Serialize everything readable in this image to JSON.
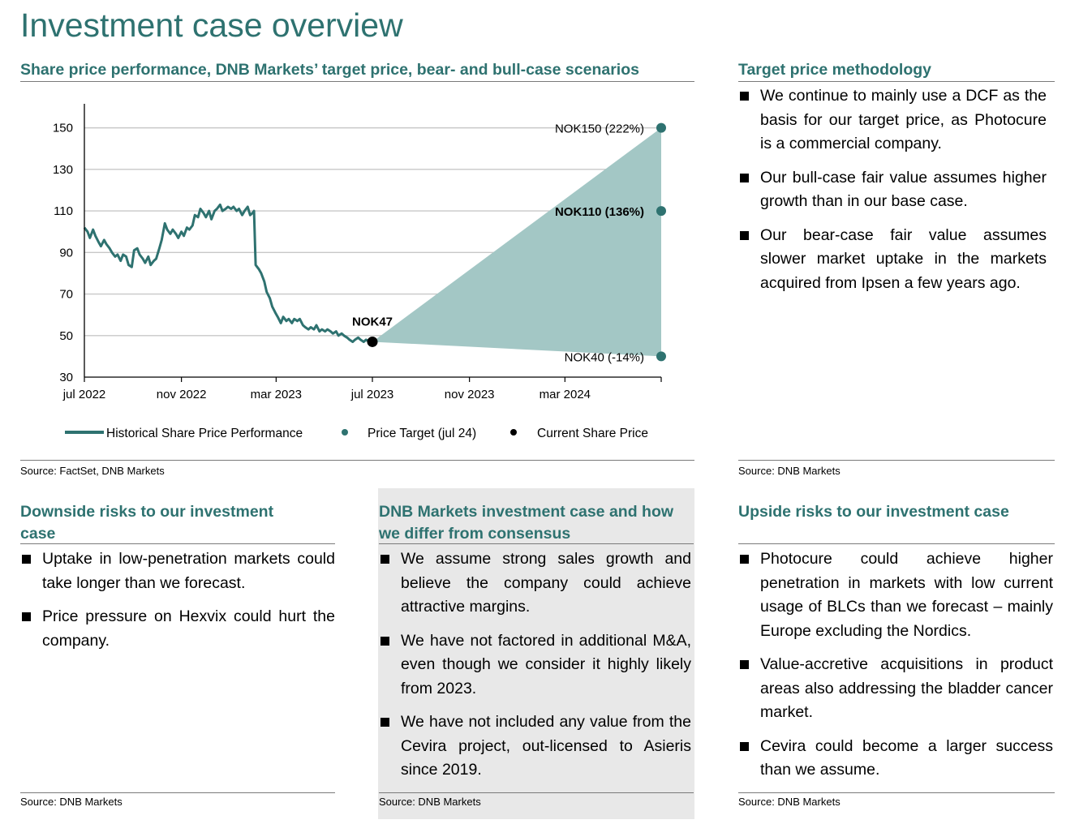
{
  "page_title": "Investment case overview",
  "chart_section": {
    "heading": "Share price performance, DNB Markets’ target price, bear- and bull-case scenarios",
    "source": "Source: FactSet, DNB Markets"
  },
  "methodology": {
    "heading": "Target price methodology",
    "bullets": [
      "We continue to mainly use a DCF as the basis for our target price, as Photocure is a commercial company.",
      "Our bull-case fair value assumes higher growth than in our base case.",
      "Our bear-case fair value assumes slower market uptake in the markets acquired from Ipsen a few years ago."
    ],
    "source": "Source: DNB Markets"
  },
  "downside": {
    "heading": "Downside risks to our investment case",
    "bullets": [
      "Uptake in low-penetration markets could take longer than we forecast.",
      "Price pressure on Hexvix could hurt the company."
    ],
    "source": "Source: DNB Markets"
  },
  "investment_case": {
    "heading": "DNB Markets investment case and how we differ from consensus",
    "bullets": [
      "We assume strong sales growth and believe the company could achieve attractive margins.",
      "We have not factored in additional M&A, even though we consider it highly likely from 2023.",
      "We have not included any value from the Cevira project, out-licensed to Asieris since 2019."
    ],
    "source": "Source: DNB Markets"
  },
  "upside": {
    "heading": "Upside risks to our investment case",
    "bullets": [
      "Photocure could achieve higher penetration in markets with low current usage of BLCs than we forecast – mainly Europe excluding the Nordics.",
      "Value-accretive acquisitions in product areas also addressing the bladder cancer market.",
      "Cevira could become a larger success than we assume."
    ],
    "source": "Source: DNB Markets"
  },
  "chart_data": {
    "type": "line",
    "title": "",
    "xlabel": "",
    "ylabel": "",
    "ylim": [
      30,
      160
    ],
    "yticks": [
      30,
      50,
      70,
      90,
      110,
      130,
      150
    ],
    "xlim": [
      "2022-07-01",
      "2024-07-01"
    ],
    "xticks": [
      {
        "date": "2022-07-01",
        "label": "jul 2022"
      },
      {
        "date": "2022-11-01",
        "label": "nov 2022"
      },
      {
        "date": "2023-03-01",
        "label": "mar 2023"
      },
      {
        "date": "2023-07-01",
        "label": "jul 2023"
      },
      {
        "date": "2023-11-01",
        "label": "nov 2023"
      },
      {
        "date": "2024-03-01",
        "label": "mar 2024"
      }
    ],
    "grid": true,
    "legend_placement": "bottom",
    "colors": {
      "line": "#2e7270",
      "fill": "#a3c7c5",
      "grid": "#c8c8c8",
      "current": "#000000"
    },
    "series": [
      {
        "name": "Historical Share Price Performance",
        "points": [
          [
            "2022-07-01",
            102
          ],
          [
            "2022-07-05",
            100
          ],
          [
            "2022-07-08",
            97
          ],
          [
            "2022-07-12",
            101
          ],
          [
            "2022-07-15",
            98
          ],
          [
            "2022-07-19",
            95
          ],
          [
            "2022-07-22",
            93
          ],
          [
            "2022-07-26",
            96
          ],
          [
            "2022-07-29",
            94
          ],
          [
            "2022-08-02",
            92
          ],
          [
            "2022-08-05",
            90
          ],
          [
            "2022-08-09",
            88
          ],
          [
            "2022-08-12",
            89
          ],
          [
            "2022-08-16",
            86
          ],
          [
            "2022-08-19",
            89
          ],
          [
            "2022-08-23",
            88
          ],
          [
            "2022-08-26",
            84
          ],
          [
            "2022-08-30",
            83
          ],
          [
            "2022-09-02",
            91
          ],
          [
            "2022-09-06",
            92
          ],
          [
            "2022-09-09",
            89
          ],
          [
            "2022-09-13",
            87
          ],
          [
            "2022-09-16",
            85
          ],
          [
            "2022-09-20",
            88
          ],
          [
            "2022-09-23",
            84
          ],
          [
            "2022-09-27",
            86
          ],
          [
            "2022-09-30",
            87
          ],
          [
            "2022-10-04",
            92
          ],
          [
            "2022-10-07",
            96
          ],
          [
            "2022-10-11",
            104
          ],
          [
            "2022-10-14",
            101
          ],
          [
            "2022-10-18",
            99
          ],
          [
            "2022-10-21",
            101
          ],
          [
            "2022-10-25",
            99
          ],
          [
            "2022-10-28",
            97
          ],
          [
            "2022-11-01",
            100
          ],
          [
            "2022-11-04",
            98
          ],
          [
            "2022-11-08",
            102
          ],
          [
            "2022-11-11",
            101
          ],
          [
            "2022-11-15",
            103
          ],
          [
            "2022-11-18",
            108
          ],
          [
            "2022-11-22",
            107
          ],
          [
            "2022-11-25",
            111
          ],
          [
            "2022-11-29",
            109
          ],
          [
            "2022-12-02",
            107
          ],
          [
            "2022-12-06",
            110
          ],
          [
            "2022-12-09",
            106
          ],
          [
            "2022-12-13",
            110
          ],
          [
            "2022-12-16",
            111
          ],
          [
            "2022-12-20",
            113
          ],
          [
            "2022-12-23",
            110
          ],
          [
            "2022-12-27",
            111
          ],
          [
            "2022-12-30",
            112
          ],
          [
            "2023-01-03",
            111
          ],
          [
            "2023-01-06",
            112
          ],
          [
            "2023-01-10",
            110
          ],
          [
            "2023-01-13",
            111
          ],
          [
            "2023-01-17",
            108
          ],
          [
            "2023-01-20",
            110
          ],
          [
            "2023-01-24",
            112
          ],
          [
            "2023-01-27",
            108
          ],
          [
            "2023-01-30",
            109
          ],
          [
            "2023-02-01",
            110
          ],
          [
            "2023-02-03",
            84
          ],
          [
            "2023-02-07",
            82
          ],
          [
            "2023-02-10",
            80
          ],
          [
            "2023-02-14",
            76
          ],
          [
            "2023-02-17",
            71
          ],
          [
            "2023-02-21",
            68
          ],
          [
            "2023-02-24",
            64
          ],
          [
            "2023-02-28",
            61
          ],
          [
            "2023-03-03",
            59
          ],
          [
            "2023-03-07",
            56
          ],
          [
            "2023-03-10",
            59
          ],
          [
            "2023-03-14",
            57
          ],
          [
            "2023-03-17",
            58
          ],
          [
            "2023-03-21",
            56
          ],
          [
            "2023-03-24",
            58
          ],
          [
            "2023-03-28",
            57
          ],
          [
            "2023-03-31",
            58
          ],
          [
            "2023-04-04",
            55
          ],
          [
            "2023-04-07",
            54
          ],
          [
            "2023-04-11",
            53
          ],
          [
            "2023-04-14",
            54
          ],
          [
            "2023-04-18",
            53
          ],
          [
            "2023-04-21",
            55
          ],
          [
            "2023-04-25",
            52
          ],
          [
            "2023-04-28",
            53
          ],
          [
            "2023-05-02",
            52
          ],
          [
            "2023-05-05",
            53
          ],
          [
            "2023-05-09",
            52
          ],
          [
            "2023-05-12",
            51
          ],
          [
            "2023-05-16",
            52
          ],
          [
            "2023-05-19",
            50
          ],
          [
            "2023-05-23",
            51
          ],
          [
            "2023-05-26",
            50
          ],
          [
            "2023-05-30",
            49
          ],
          [
            "2023-06-02",
            48
          ],
          [
            "2023-06-06",
            47
          ],
          [
            "2023-06-09",
            48
          ],
          [
            "2023-06-13",
            49
          ],
          [
            "2023-06-16",
            48
          ],
          [
            "2023-06-20",
            47
          ],
          [
            "2023-06-23",
            48
          ],
          [
            "2023-06-27",
            47
          ],
          [
            "2023-07-01",
            47
          ]
        ]
      },
      {
        "name": "Price Target (jul 24)",
        "points": [
          {
            "date": "2024-07-01",
            "value": 150,
            "label": "NOK150 (222%)",
            "bold": false
          },
          {
            "date": "2024-07-01",
            "value": 110,
            "label": "NOK110 (136%)",
            "bold": true
          },
          {
            "date": "2024-07-01",
            "value": 40,
            "label": "NOK40 (-14%)",
            "bold": false
          }
        ]
      },
      {
        "name": "Current Share Price",
        "points": [
          {
            "date": "2023-07-01",
            "value": 47,
            "label": "NOK47"
          }
        ]
      }
    ]
  }
}
